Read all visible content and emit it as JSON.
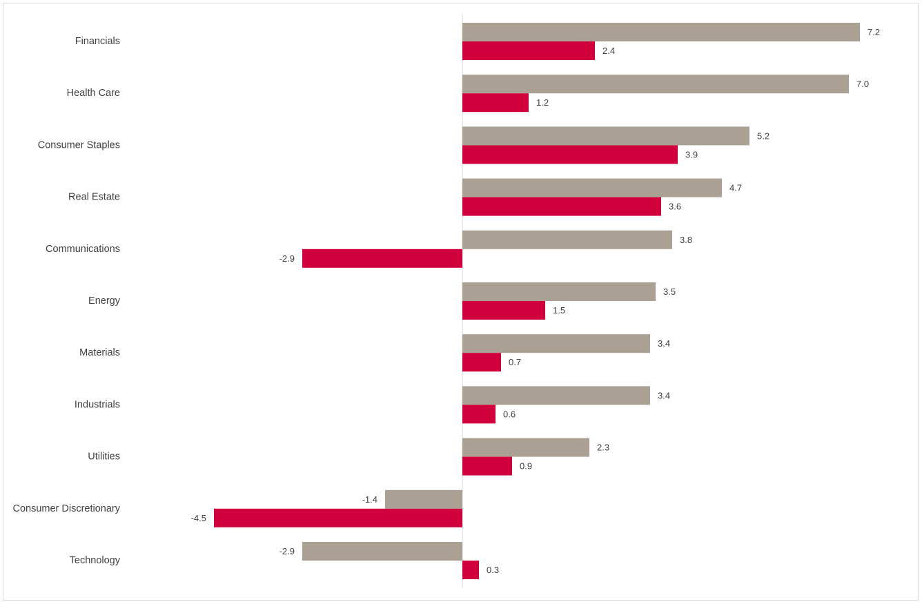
{
  "colors": {
    "series_1": "#aba094",
    "series_2": "#d0003c",
    "axis": "#d9d9d9",
    "text": "#404040",
    "border": "#d9d9d9"
  },
  "chart_data": {
    "type": "bar",
    "orientation": "horizontal",
    "categories": [
      "Financials",
      "Health Care",
      "Consumer Staples",
      "Real Estate",
      "Communications",
      "Energy",
      "Materials",
      "Industrials",
      "Utilities",
      "Consumer Discretionary",
      "Technology"
    ],
    "series": [
      {
        "color": "#aba094",
        "values": [
          7.2,
          7.0,
          5.2,
          4.7,
          3.8,
          3.5,
          3.4,
          3.4,
          2.3,
          -1.4,
          -2.9
        ],
        "labels": [
          "7.2",
          "7.0",
          "5.2",
          "4.7",
          "3.8",
          "3.5",
          "3.4",
          "3.4",
          "2.3",
          "-1.4",
          "-2.9"
        ]
      },
      {
        "color": "#d0003c",
        "values": [
          2.4,
          1.2,
          3.9,
          3.6,
          -2.9,
          1.5,
          0.7,
          0.6,
          0.9,
          -4.5,
          0.3
        ],
        "labels": [
          "2.4",
          "1.2",
          "3.9",
          "3.6",
          "-2.9",
          "1.5",
          "0.7",
          "0.6",
          "0.9",
          "-4.5",
          "0.3"
        ]
      }
    ],
    "title": "",
    "xlabel": "",
    "ylabel": "",
    "xlim": [
      -6.5,
      8.2
    ],
    "gridlines": false,
    "legend": "none",
    "data_labels": true
  }
}
